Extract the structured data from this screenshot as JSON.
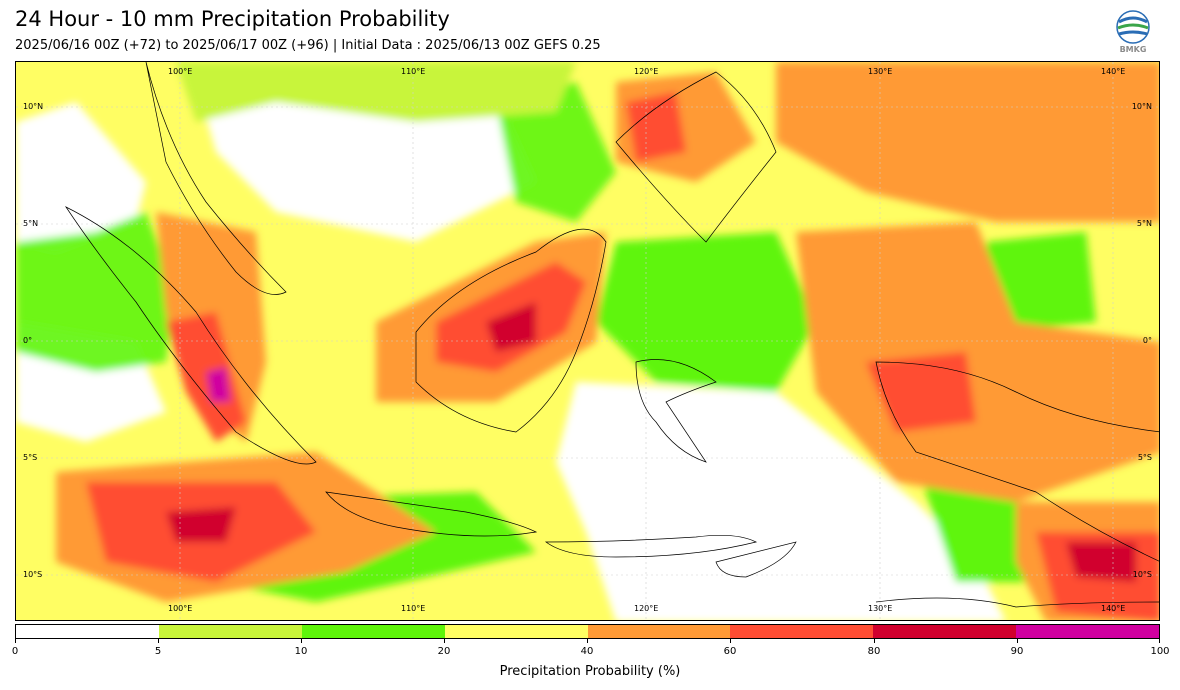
{
  "title": "24 Hour - 10 mm Precipitation Probability",
  "subtitle": "2025/06/16 00Z (+72) to 2025/06/17 00Z (+96) | Initial Data : 2025/06/13 00Z GEFS 0.25",
  "logo": {
    "icon": "bmkg-logo",
    "text": "BMKG"
  },
  "map": {
    "lon_labels": [
      "100°E",
      "110°E",
      "120°E",
      "130°E",
      "140°E"
    ],
    "lat_labels": [
      "10°N",
      "5°N",
      "0°",
      "5°S",
      "10°S"
    ]
  },
  "colorbar": {
    "label": "Precipitation Probability (%)",
    "ticks": [
      "0",
      "5",
      "10",
      "20",
      "40",
      "60",
      "80",
      "90",
      "100"
    ],
    "colors": [
      "#ffffff",
      "#c8f53a",
      "#5ef50a",
      "#fffe63",
      "#ff9a36",
      "#ff4d33",
      "#d1002e",
      "#d000a0"
    ]
  }
}
